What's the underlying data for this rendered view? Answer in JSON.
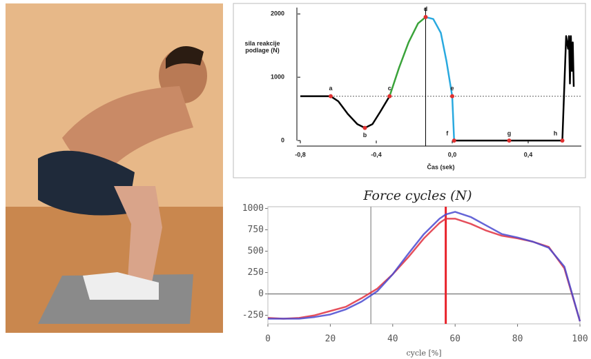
{
  "chart_data": [
    {
      "type": "line",
      "ylabel": "sila reakcije podlage (N)",
      "xlabel": "Čas (sek)",
      "xlim": [
        -0.8,
        0.68
      ],
      "ylim": [
        0,
        2100
      ],
      "xticks": [
        {
          "value": -0.8,
          "label": "-0,8"
        },
        {
          "value": -0.4,
          "label": "-0,4"
        },
        {
          "value": 0,
          "label": "0,0"
        },
        {
          "value": 0.4,
          "label": "0,4"
        }
      ],
      "yticks": [
        0,
        1000,
        2000
      ],
      "reference_line": 700,
      "vertical_line": -0.14,
      "series": [
        {
          "color": "#000000",
          "x": [
            -0.8,
            -0.64,
            -0.6,
            -0.55,
            -0.5,
            -0.46,
            -0.42,
            -0.38,
            -0.33
          ],
          "values": [
            700,
            700,
            620,
            420,
            260,
            200,
            260,
            450,
            700
          ]
        },
        {
          "color": "#3aa33a",
          "x": [
            -0.33,
            -0.28,
            -0.23,
            -0.18,
            -0.14
          ],
          "values": [
            700,
            1150,
            1550,
            1850,
            1950
          ]
        },
        {
          "color": "#29a9df",
          "x": [
            -0.14,
            -0.1,
            -0.06,
            -0.03,
            0,
            0.01
          ],
          "values": [
            1950,
            1920,
            1700,
            1250,
            700,
            0
          ]
        },
        {
          "color": "#000000",
          "x": [
            0.01,
            0.3,
            0.58,
            0.6,
            0.61,
            0.615,
            0.62,
            0.625,
            0.63,
            0.635,
            0.64
          ],
          "values": [
            0,
            0,
            0,
            1650,
            1450,
            1650,
            900,
            1650,
            1100,
            1550,
            850
          ]
        }
      ],
      "points": [
        {
          "label": "a",
          "x": -0.64,
          "y": 700
        },
        {
          "label": "b",
          "x": -0.46,
          "y": 200
        },
        {
          "label": "c",
          "x": -0.33,
          "y": 700
        },
        {
          "label": "d",
          "x": -0.14,
          "y": 1950
        },
        {
          "label": "e",
          "x": 0,
          "y": 700
        },
        {
          "label": "f",
          "x": 0.01,
          "y": 0
        },
        {
          "label": "g",
          "x": 0.3,
          "y": 0
        },
        {
          "label": "h",
          "x": 0.58,
          "y": 0
        }
      ]
    },
    {
      "type": "line",
      "title": "Force cycles (N)",
      "xlabel": "cycle [%]",
      "xlim": [
        0,
        100
      ],
      "ylim": [
        -350,
        1020
      ],
      "xticks": [
        0,
        20,
        40,
        60,
        80,
        100
      ],
      "yticks": [
        -250,
        0,
        250,
        500,
        750,
        1000
      ],
      "vertical_lines": [
        {
          "x": 33,
          "color": "#888888"
        },
        {
          "x": 57,
          "color": "#e8222a"
        }
      ],
      "series": [
        {
          "color": "#e03040",
          "x": [
            0,
            5,
            10,
            15,
            20,
            25,
            30,
            35,
            40,
            45,
            50,
            55,
            57,
            60,
            65,
            70,
            75,
            80,
            85,
            90,
            95,
            100
          ],
          "values": [
            -280,
            -290,
            -280,
            -250,
            -200,
            -150,
            -50,
            60,
            230,
            430,
            650,
            830,
            880,
            880,
            820,
            740,
            680,
            650,
            610,
            550,
            300,
            -320
          ]
        },
        {
          "color": "#4a4ad0",
          "x": [
            0,
            5,
            10,
            15,
            20,
            25,
            30,
            35,
            40,
            45,
            50,
            55,
            57,
            60,
            65,
            70,
            75,
            80,
            85,
            90,
            95,
            100
          ],
          "values": [
            -290,
            -290,
            -290,
            -270,
            -240,
            -180,
            -90,
            30,
            230,
            470,
            700,
            880,
            930,
            960,
            900,
            800,
            700,
            660,
            610,
            540,
            320,
            -320
          ]
        }
      ]
    }
  ]
}
